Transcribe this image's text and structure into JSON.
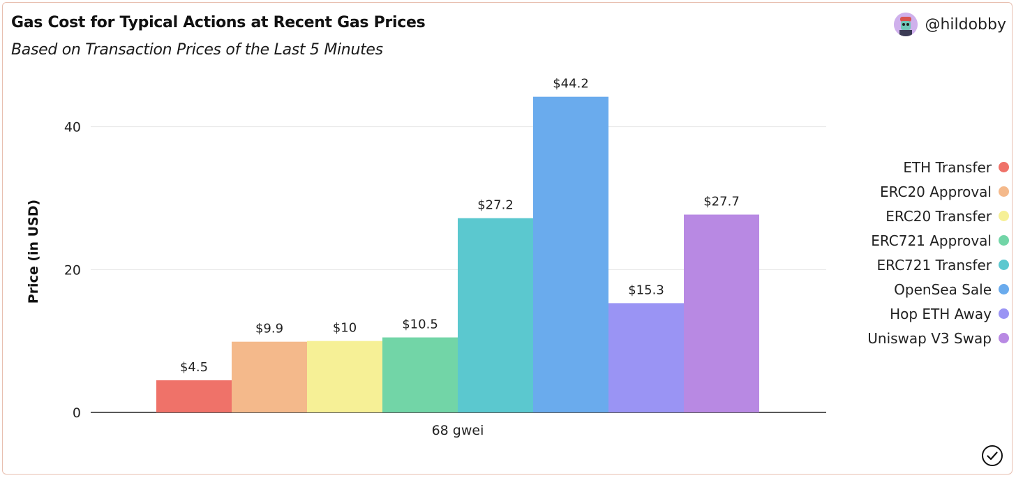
{
  "header": {
    "title": "Gas Cost for Typical Actions at Recent Gas Prices",
    "subtitle": "Based on Transaction Prices of the Last 5 Minutes",
    "author_handle": "@hildobby"
  },
  "chart_data": {
    "type": "bar",
    "title": "Gas Cost for Typical Actions at Recent Gas Prices",
    "subtitle": "Based on Transaction Prices of the Last 5 Minutes",
    "xlabel": "",
    "ylabel": "Price (in USD)",
    "categories": [
      "68 gwei"
    ],
    "ylim": [
      0,
      47
    ],
    "yticks": [
      0,
      20,
      40
    ],
    "grid": true,
    "legend_position": "right",
    "series": [
      {
        "name": "ETH Transfer",
        "values": [
          4.5
        ],
        "label": "$4.5",
        "color": "#ef7269"
      },
      {
        "name": "ERC20 Approval",
        "values": [
          9.9
        ],
        "label": "$9.9",
        "color": "#f4b98b"
      },
      {
        "name": "ERC20 Transfer",
        "values": [
          10
        ],
        "label": "$10",
        "color": "#f6f096"
      },
      {
        "name": "ERC721 Approval",
        "values": [
          10.5
        ],
        "label": "$10.5",
        "color": "#72d5a7"
      },
      {
        "name": "ERC721 Transfer",
        "values": [
          27.2
        ],
        "label": "$27.2",
        "color": "#5bc8cf"
      },
      {
        "name": "OpenSea Sale",
        "values": [
          44.2
        ],
        "label": "$44.2",
        "color": "#6aabed"
      },
      {
        "name": "Hop ETH Away",
        "values": [
          15.3
        ],
        "label": "$15.3",
        "color": "#9a94f4"
      },
      {
        "name": "Uniswap V3 Swap",
        "values": [
          27.7
        ],
        "label": "$27.7",
        "color": "#b889e3"
      }
    ]
  },
  "icons": {
    "avatar": "avatar-icon",
    "check": "check-circle-icon"
  }
}
